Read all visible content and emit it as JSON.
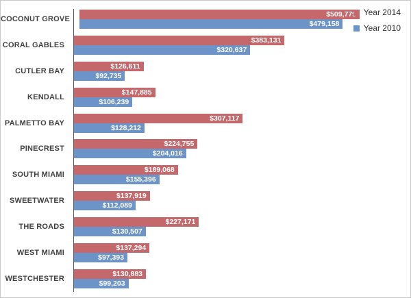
{
  "chart_data": {
    "type": "bar",
    "orientation": "horizontal",
    "title": "",
    "categories": [
      "COCONUT GROVE",
      "CORAL GABLES",
      "CUTLER BAY",
      "KENDALL",
      "PALMETTO BAY",
      "PINECREST",
      "SOUTH MIAMI",
      "SWEETWATER",
      "THE ROADS",
      "WEST MIAMI",
      "WESTCHESTER"
    ],
    "series": [
      {
        "name": "Year 2014",
        "color": "#c4686c",
        "values": [
          509779,
          383131,
          126611,
          147885,
          307117,
          224755,
          189068,
          137919,
          227171,
          137294,
          130883
        ],
        "labels": [
          "$509,779",
          "$383,131",
          "$126,611",
          "$147,885",
          "$307,117",
          "$224,755",
          "$189,068",
          "$137,919",
          "$227,171",
          "$137,294",
          "$130,883"
        ]
      },
      {
        "name": "Year 2010",
        "color": "#6d94c8",
        "values": [
          479158,
          320637,
          92735,
          106239,
          128212,
          204016,
          155396,
          112089,
          130507,
          97393,
          99203
        ],
        "labels": [
          "$479,158",
          "$320,637",
          "$92,735",
          "$106,239",
          "$128,212",
          "$204,016",
          "$155,396",
          "$112,089",
          "$130,507",
          "$97,393",
          "$99,203"
        ]
      }
    ],
    "value_axis": {
      "min": 0,
      "max_bar_value": 509779
    },
    "legend": {
      "position": "top-right",
      "entries": [
        "Year 2014",
        "Year 2010"
      ]
    },
    "grid": false,
    "data_labels": "inside-end, white bold"
  },
  "colors": {
    "series_year_2014": "#c4686c",
    "series_year_2010": "#6d94c8",
    "axis_line": "#595959",
    "category_text": "#3f3f3f",
    "chart_border": "#c9c9c9",
    "background": "#ffffff"
  }
}
